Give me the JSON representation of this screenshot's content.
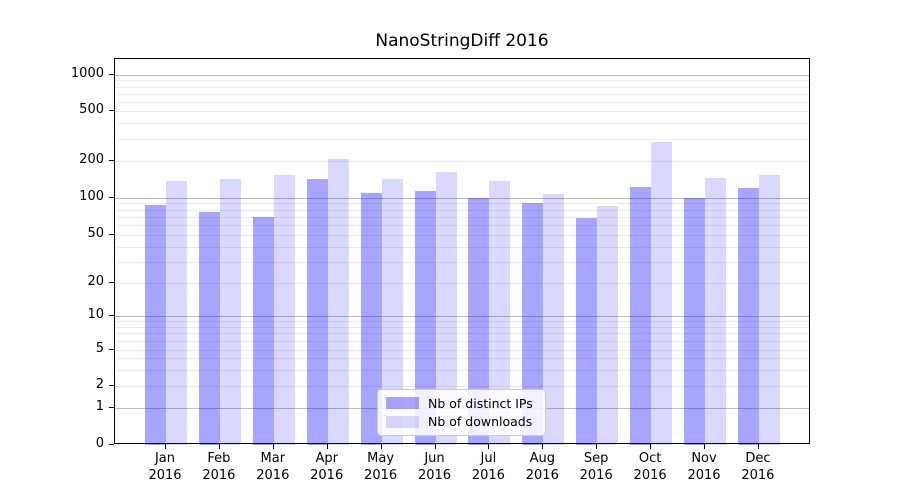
{
  "figure": {
    "title": "NanoStringDiff 2016"
  },
  "chart_data": {
    "type": "bar",
    "title": "NanoStringDiff 2016",
    "categories": [
      "Jan 2016",
      "Feb 2016",
      "Mar 2016",
      "Apr 2016",
      "May 2016",
      "Jun 2016",
      "Jul 2016",
      "Aug 2016",
      "Sep 2016",
      "Oct 2016",
      "Nov 2016",
      "Dec 2016"
    ],
    "series": [
      {
        "name": "Nb of distinct IPs",
        "color": "rgba(0,0,255,0.35)",
        "values": [
          88,
          76,
          70,
          143,
          110,
          114,
          99,
          90,
          68,
          122,
          100,
          120
        ]
      },
      {
        "name": "Nb of downloads",
        "color": "rgba(0,0,255,0.15)",
        "values": [
          136,
          141,
          152,
          207,
          143,
          161,
          136,
          108,
          85,
          283,
          146,
          152
        ]
      }
    ],
    "y_axis": {
      "scale": "symlog",
      "ticks": [
        0,
        1,
        2,
        5,
        10,
        20,
        50,
        100,
        200,
        500,
        1000
      ],
      "ylim": [
        0,
        1300
      ]
    },
    "legend": {
      "position": "lower center",
      "items": [
        "Nb of distinct IPs",
        "Nb of downloads"
      ]
    },
    "grid": "both",
    "xlabel": "",
    "ylabel": ""
  },
  "colors": {
    "bar_distinct_ips": "rgba(0,0,255,0.35)",
    "bar_downloads": "rgba(0,0,255,0.15)",
    "grid_major": "#bdbdbd",
    "grid_minor": "#ececec",
    "axis": "#000000"
  }
}
